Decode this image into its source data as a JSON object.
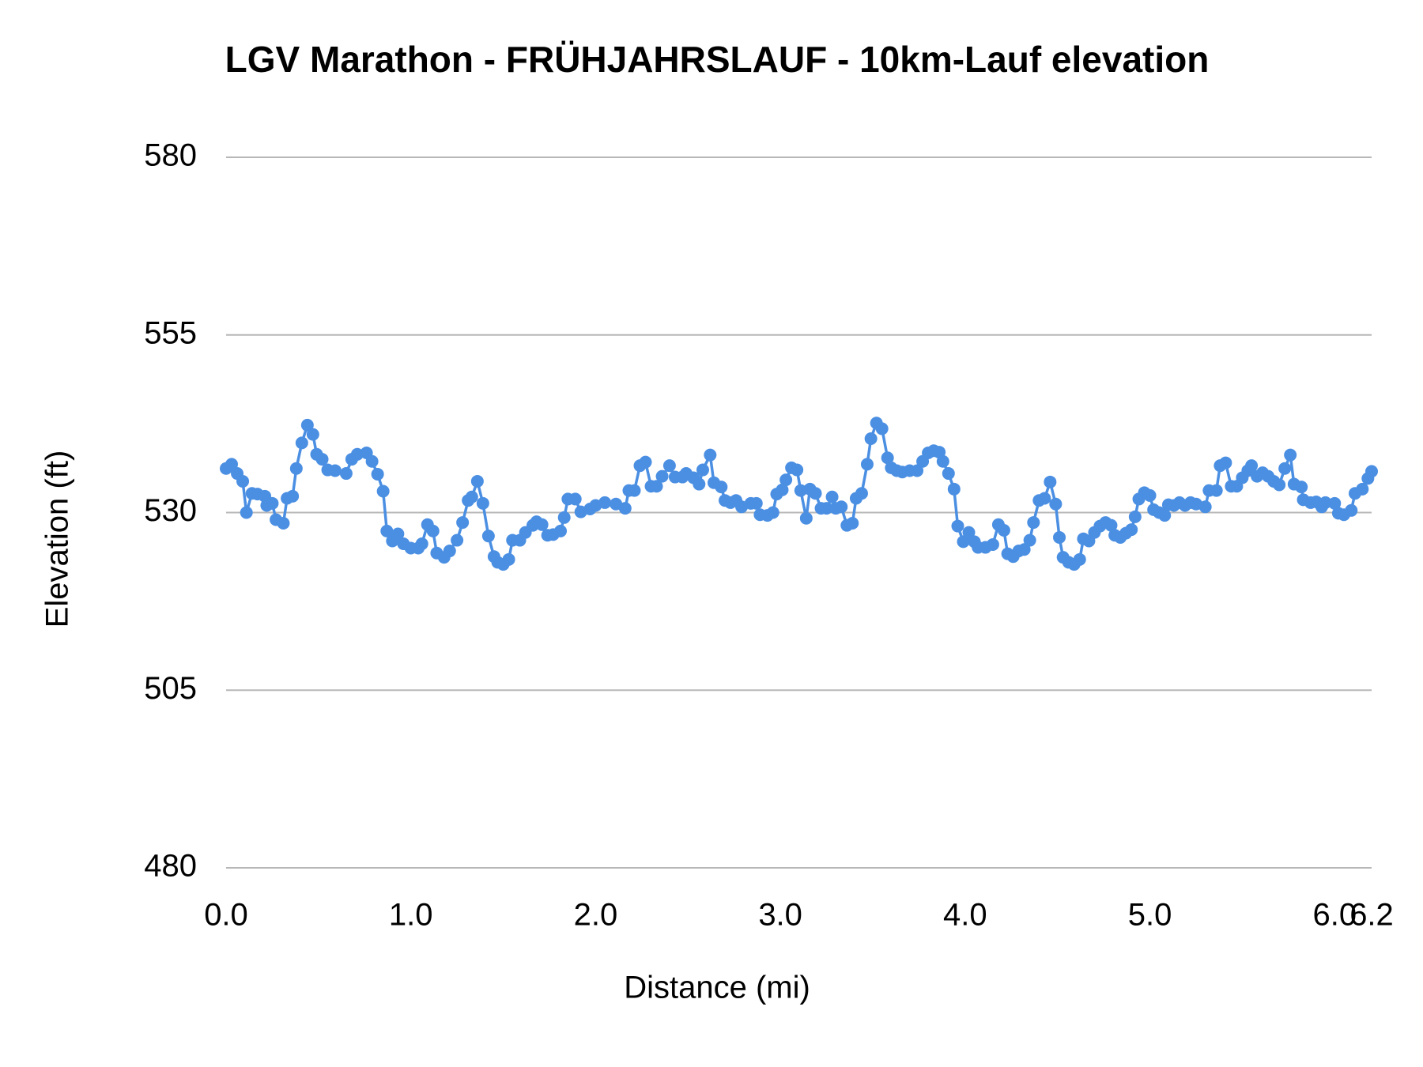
{
  "chart_data": {
    "type": "line",
    "title": "LGV Marathon - FRÜHJAHRSLAUF - 10km-Lauf elevation",
    "x_label": "Distance (mi)",
    "y_label": "Elevation (ft)",
    "xlim": [
      0,
      6.2
    ],
    "ylim": [
      480,
      580
    ],
    "xticks": [
      {
        "value": 0,
        "label": "0.0"
      },
      {
        "value": 1,
        "label": "1.0"
      },
      {
        "value": 2,
        "label": "2.0"
      },
      {
        "value": 3,
        "label": "3.0"
      },
      {
        "value": 4,
        "label": "4.0"
      },
      {
        "value": 5,
        "label": "5.0"
      },
      {
        "value": 6,
        "label": "6.0"
      },
      {
        "value": 6.2,
        "label": "6.2"
      }
    ],
    "yticks": [
      480,
      505,
      530,
      555,
      580
    ],
    "grid": true,
    "x": [
      0,
      0.03,
      0.06,
      0.09,
      0.11,
      0.14,
      0.17,
      0.21,
      0.22,
      0.25,
      0.27,
      0.31,
      0.33,
      0.36,
      0.38,
      0.41,
      0.44,
      0.47,
      0.49,
      0.52,
      0.55,
      0.59,
      0.65,
      0.68,
      0.71,
      0.76,
      0.79,
      0.82,
      0.85,
      0.87,
      0.9,
      0.93,
      0.96,
      1.0,
      1.04,
      1.06,
      1.09,
      1.12,
      1.14,
      1.18,
      1.21,
      1.25,
      1.28,
      1.31,
      1.33,
      1.36,
      1.39,
      1.42,
      1.45,
      1.47,
      1.5,
      1.53,
      1.55,
      1.59,
      1.62,
      1.66,
      1.68,
      1.71,
      1.74,
      1.77,
      1.81,
      1.83,
      1.85,
      1.89,
      1.92,
      1.97,
      2.0,
      2.05,
      2.11,
      2.16,
      2.18,
      2.21,
      2.24,
      2.27,
      2.3,
      2.33,
      2.36,
      2.4,
      2.43,
      2.47,
      2.49,
      2.53,
      2.56,
      2.58,
      2.62,
      2.64,
      2.68,
      2.7,
      2.73,
      2.76,
      2.79,
      2.84,
      2.87,
      2.89,
      2.93,
      2.96,
      2.98,
      3.01,
      3.03,
      3.06,
      3.09,
      3.11,
      3.14,
      3.16,
      3.19,
      3.22,
      3.25,
      3.28,
      3.3,
      3.33,
      3.36,
      3.39,
      3.41,
      3.44,
      3.47,
      3.49,
      3.52,
      3.55,
      3.58,
      3.6,
      3.63,
      3.66,
      3.7,
      3.74,
      3.77,
      3.8,
      3.83,
      3.86,
      3.88,
      3.91,
      3.94,
      3.96,
      3.99,
      4.02,
      4.05,
      4.07,
      4.11,
      4.15,
      4.18,
      4.21,
      4.23,
      4.26,
      4.29,
      4.32,
      4.35,
      4.37,
      4.4,
      4.43,
      4.46,
      4.49,
      4.51,
      4.53,
      4.56,
      4.59,
      4.62,
      4.64,
      4.67,
      4.7,
      4.73,
      4.76,
      4.79,
      4.81,
      4.84,
      4.87,
      4.9,
      4.92,
      4.94,
      4.97,
      5.0,
      5.02,
      5.05,
      5.08,
      5.1,
      5.13,
      5.16,
      5.19,
      5.22,
      5.25,
      5.3,
      5.32,
      5.36,
      5.38,
      5.41,
      5.44,
      5.47,
      5.5,
      5.53,
      5.55,
      5.58,
      5.61,
      5.64,
      5.67,
      5.7,
      5.73,
      5.76,
      5.78,
      5.82,
      5.83,
      5.87,
      5.9,
      5.93,
      5.95,
      6.0,
      6.02,
      6.05,
      6.09,
      6.11,
      6.15,
      6.18,
      6.2
    ],
    "series": [
      {
        "color": "#4b8fe3",
        "values": [
          536.2,
          536.8,
          535.5,
          534.4,
          530,
          532.7,
          532.6,
          532.3,
          531,
          531.3,
          529,
          528.5,
          532,
          532.3,
          536.2,
          539.8,
          542.3,
          541,
          538.2,
          537.5,
          536,
          535.9,
          535.5,
          537.5,
          538.2,
          538.4,
          537.2,
          535.4,
          533,
          527.4,
          526,
          527,
          525.6,
          525,
          525,
          525.6,
          528.3,
          527.4,
          524.3,
          523.7,
          524.6,
          526.1,
          528.6,
          531.7,
          532.2,
          534.4,
          531.3,
          526.7,
          523.8,
          523,
          522.7,
          523.4,
          526.1,
          526.1,
          527.2,
          528.2,
          528.7,
          528.3,
          526.8,
          526.9,
          527.4,
          529.3,
          531.9,
          531.9,
          530.1,
          530.5,
          531,
          531.4,
          531.2,
          530.6,
          533.1,
          533.1,
          536.6,
          537.1,
          533.7,
          533.7,
          535.1,
          536.6,
          535,
          535,
          535.5,
          534.9,
          534,
          536,
          538.1,
          534.2,
          533.6,
          531.7,
          531.4,
          531.7,
          530.8,
          531.3,
          531.3,
          529.7,
          529.6,
          530,
          532.6,
          533.2,
          534.6,
          536.3,
          536,
          533.1,
          529.2,
          533.3,
          532.7,
          530.6,
          530.6,
          532.2,
          530.6,
          530.8,
          528.2,
          528.5,
          532,
          532.7,
          536.8,
          540.4,
          542.6,
          541.8,
          537.7,
          536.3,
          535.9,
          535.7,
          535.9,
          535.9,
          537.2,
          538.4,
          538.7,
          538.5,
          537.2,
          535.5,
          533.3,
          528.1,
          525.9,
          527.2,
          525.9,
          525.1,
          525.1,
          525.5,
          528.3,
          527.5,
          524.2,
          523.8,
          524.6,
          524.8,
          526.1,
          528.6,
          531.7,
          532,
          534.3,
          531.2,
          526.5,
          523.7,
          523,
          522.7,
          523.4,
          526.3,
          526,
          527.2,
          528.1,
          528.6,
          528.2,
          526.8,
          526.5,
          527.1,
          527.6,
          529.4,
          531.9,
          532.8,
          532.4,
          530.4,
          530,
          529.6,
          531.1,
          531,
          531.4,
          531,
          531.4,
          531.2,
          530.8,
          533.1,
          533.1,
          536.6,
          537,
          533.7,
          533.7,
          534.9,
          535.9,
          536.6,
          535.1,
          535.6,
          535.1,
          534.4,
          533.9,
          536.2,
          538.1,
          534,
          533.6,
          531.8,
          531.4,
          531.5,
          530.8,
          531.4,
          531.3,
          529.9,
          529.7,
          530.3,
          532.7,
          533.3,
          534.8,
          535.8
        ]
      }
    ]
  }
}
